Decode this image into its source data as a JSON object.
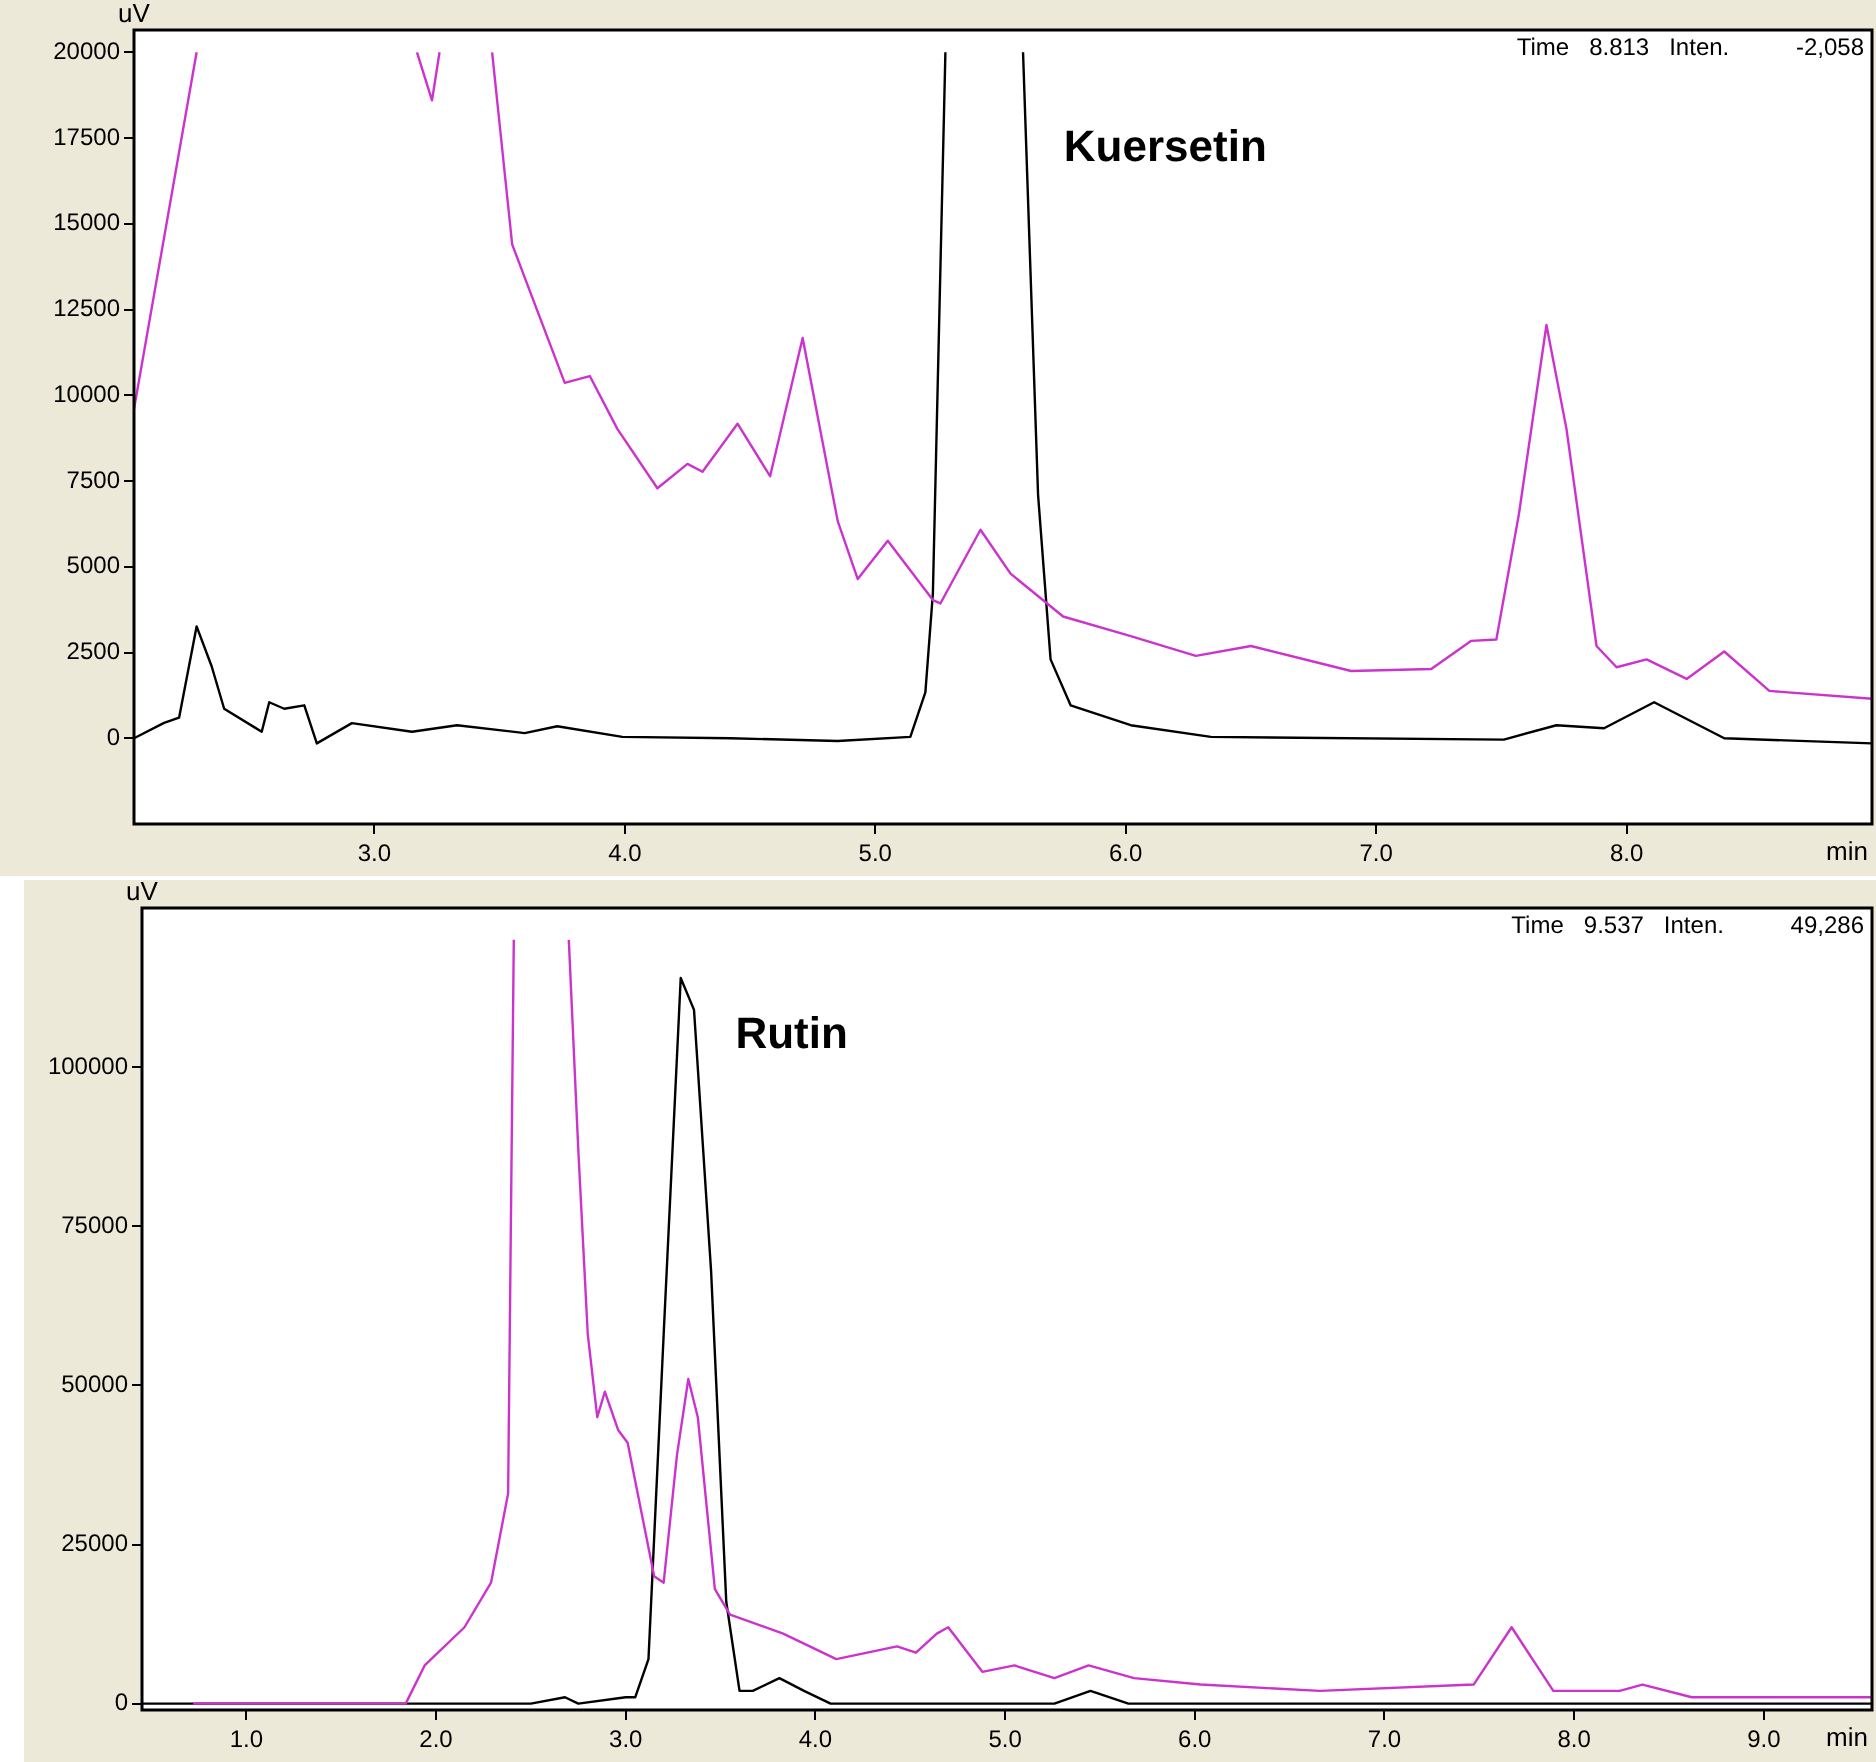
{
  "chart_data": [
    {
      "type": "line",
      "xlabel": "min",
      "ylabel": "uV",
      "xlim": [
        2.04,
        8.98
      ],
      "ylim": [
        -2500,
        20650
      ],
      "xticks": [
        {
          "value": 3,
          "label": "3.0"
        },
        {
          "value": 4,
          "label": "4.0"
        },
        {
          "value": 5,
          "label": "5.0"
        },
        {
          "value": 6,
          "label": "6.0"
        },
        {
          "value": 7,
          "label": "7.0"
        },
        {
          "value": 8,
          "label": "8.0"
        }
      ],
      "yticks": [
        0,
        2500,
        5000,
        7500,
        10000,
        12500,
        15000,
        17500,
        20000
      ],
      "annotations": [
        "Time   8.813   Inten.          -2,058",
        "Kuersetin"
      ],
      "series": [
        {
          "color": "#cc33cc",
          "x": [
            2.04,
            2.29,
            2.3,
            3.17,
            3.23,
            3.26,
            3.27,
            3.47,
            3.55,
            3.62,
            3.76,
            3.86,
            3.97,
            4.13,
            4.25,
            4.31,
            4.45,
            4.58,
            4.71,
            4.85,
            4.93,
            5.05,
            5.23,
            5.26,
            5.42,
            5.54,
            5.75,
            6.02,
            6.28,
            6.5,
            6.9,
            7.22,
            7.38,
            7.48,
            7.57,
            7.68,
            7.76,
            7.88,
            7.96,
            8.08,
            8.24,
            8.39,
            8.57,
            8.98
          ],
          "values": [
            9600,
            20000,
            null,
            20000,
            18600,
            20000,
            null,
            20000,
            14400,
            13050,
            10360,
            10560,
            9020,
            7290,
            8000,
            7770,
            9170,
            7640,
            11670,
            6330,
            4640,
            5760,
            4030,
            3930,
            6080,
            4800,
            3550,
            2980,
            2400,
            2690,
            1960,
            2020,
            2840,
            2880,
            6530,
            12050,
            9020,
            2690,
            2070,
            2300,
            1730,
            2530,
            1380,
            1150
          ]
        },
        {
          "color": "#000000",
          "x": [
            2.04,
            2.16,
            2.22,
            2.29,
            2.35,
            2.4,
            2.55,
            2.58,
            2.64,
            2.72,
            2.77,
            2.91,
            3.15,
            3.33,
            3.6,
            3.73,
            3.99,
            4.42,
            4.85,
            5.14,
            5.2,
            5.23,
            5.28,
            5.4,
            5.59,
            5.65,
            5.7,
            5.78,
            6.02,
            6.34,
            7.51,
            7.72,
            7.91,
            8.11,
            8.39,
            8.98
          ],
          "values": [
            0,
            450,
            600,
            3260,
            2100,
            860,
            190,
            1050,
            860,
            960,
            -150,
            440,
            190,
            380,
            150,
            350,
            40,
            0,
            -80,
            40,
            1340,
            4220,
            20000,
            null,
            20000,
            7100,
            2300,
            960,
            380,
            40,
            -40,
            380,
            290,
            1050,
            0,
            -150
          ]
        }
      ]
    },
    {
      "type": "line",
      "xlabel": "min",
      "ylabel": "uV",
      "xlim": [
        0.45,
        9.57
      ],
      "ylim": [
        -1000,
        125000
      ],
      "xticks": [
        {
          "value": 1,
          "label": "1.0"
        },
        {
          "value": 2,
          "label": "2.0"
        },
        {
          "value": 3,
          "label": "3.0"
        },
        {
          "value": 4,
          "label": "4.0"
        },
        {
          "value": 5,
          "label": "5.0"
        },
        {
          "value": 6,
          "label": "6.0"
        },
        {
          "value": 7,
          "label": "7.0"
        },
        {
          "value": 8,
          "label": "8.0"
        },
        {
          "value": 9,
          "label": "9.0"
        }
      ],
      "yticks": [
        0,
        25000,
        50000,
        75000,
        100000
      ],
      "annotations": [
        "Time   9.537   Inten.          49,286",
        "Rutin"
      ],
      "series": [
        {
          "color": "#cc33cc",
          "x": [
            0.72,
            1.84,
            1.94,
            2.15,
            2.29,
            2.38,
            2.41,
            2.5,
            2.7,
            2.75,
            2.8,
            2.85,
            2.89,
            2.96,
            3.01,
            3.15,
            3.2,
            3.27,
            3.33,
            3.38,
            3.47,
            3.55,
            3.83,
            4.11,
            4.43,
            4.53,
            4.64,
            4.7,
            4.88,
            5.05,
            5.26,
            5.44,
            5.68,
            6.03,
            6.66,
            7.47,
            7.67,
            7.89,
            8.24,
            8.36,
            8.62,
            9.57
          ],
          "values": [
            0,
            0,
            6000,
            12000,
            19000,
            33000,
            120000,
            null,
            120000,
            87000,
            58000,
            45000,
            49000,
            43000,
            41000,
            20000,
            19000,
            39000,
            51000,
            45000,
            18000,
            14000,
            11000,
            7000,
            9000,
            8000,
            11000,
            12000,
            5000,
            6000,
            4000,
            6000,
            4000,
            3000,
            2000,
            3000,
            12000,
            2000,
            2000,
            3000,
            1000,
            1000
          ]
        },
        {
          "color": "#000000",
          "x": [
            0.45,
            2.5,
            2.68,
            2.75,
            3.0,
            3.05,
            3.12,
            3.2,
            3.29,
            3.36,
            3.45,
            3.53,
            3.6,
            3.67,
            3.81,
            3.94,
            4.08,
            5.26,
            5.45,
            5.65,
            9.57
          ],
          "values": [
            0,
            0,
            1000,
            0,
            1000,
            1000,
            7000,
            58000,
            114000,
            109000,
            68000,
            16000,
            2000,
            2000,
            4000,
            2000,
            0,
            0,
            2000,
            0,
            0
          ]
        }
      ]
    }
  ]
}
